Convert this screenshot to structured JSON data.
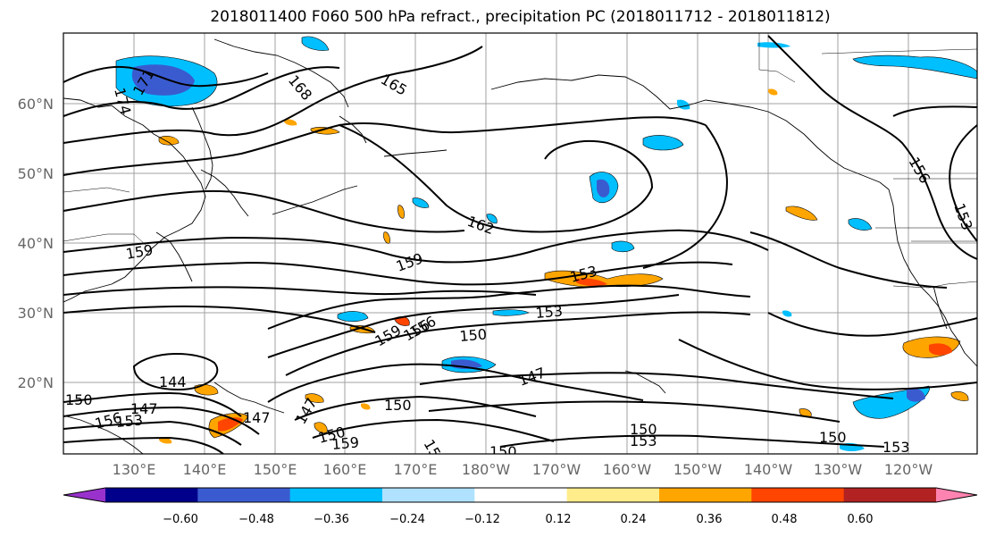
{
  "title": "2018011400 F060 500 hPa refract., precipitation PC (2018011712 - 2018011812)",
  "lat_labels": [
    "60°N",
    "50°N",
    "40°N",
    "30°N",
    "20°N"
  ],
  "lon_labels": [
    "130°E",
    "140°E",
    "150°E",
    "160°E",
    "170°E",
    "180°W",
    "170°W",
    "160°W",
    "150°W",
    "140°W",
    "130°W",
    "120°W"
  ],
  "contour_labels": [
    "171",
    "174",
    "168",
    "165",
    "162",
    "159",
    "159",
    "159",
    "156",
    "153",
    "153",
    "153",
    "150",
    "150",
    "150",
    "150",
    "147",
    "147",
    "147",
    "147",
    "144",
    "153",
    "150",
    "156",
    "156",
    "159",
    "153",
    "150",
    "150",
    "153",
    "156",
    "153"
  ],
  "colorbar": {
    "ticks": [
      "−0.60",
      "−0.48",
      "−0.36",
      "−0.24",
      "−0.12",
      "0.12",
      "0.24",
      "0.36",
      "0.48",
      "0.60"
    ],
    "colors": [
      "#9932cc",
      "#00008b",
      "#3a5bd0",
      "#00bfff",
      "#b0e2ff",
      "#ffffff",
      "#ffec8b",
      "#ffa500",
      "#ff4500",
      "#b22222",
      "#ff83b0"
    ]
  }
}
